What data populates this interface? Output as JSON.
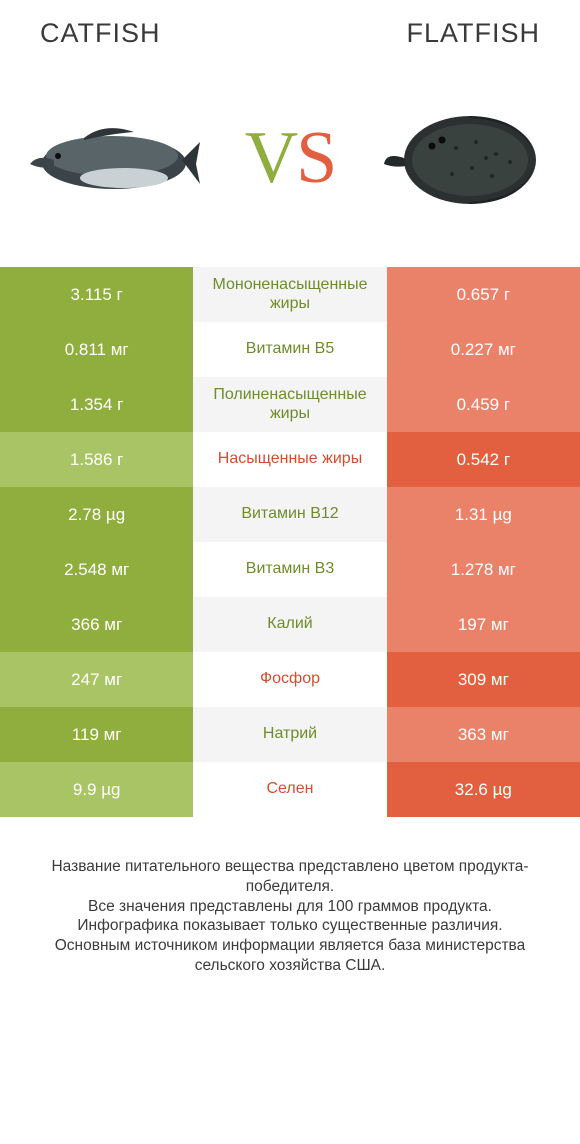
{
  "colors": {
    "left_win": "#8fae3d",
    "left_lose": "#a9c465",
    "right_win": "#e2603f",
    "right_lose": "#ea8269",
    "mid_green": "#6f8c2a",
    "mid_orange": "#d24e2e"
  },
  "header": {
    "left_title": "CATFISH",
    "right_title": "FLATFISH"
  },
  "hero": {
    "vs_v": "V",
    "vs_s": "S"
  },
  "rows": [
    {
      "left": "3.115 г",
      "mid": "Мононенасыщенные жиры",
      "right": "0.657 г",
      "winner": "left"
    },
    {
      "left": "0.811 мг",
      "mid": "Витамин B5",
      "right": "0.227 мг",
      "winner": "left"
    },
    {
      "left": "1.354 г",
      "mid": "Полиненасыщенные жиры",
      "right": "0.459 г",
      "winner": "left"
    },
    {
      "left": "1.586 г",
      "mid": "Насыщенные жиры",
      "right": "0.542 г",
      "winner": "right"
    },
    {
      "left": "2.78 µg",
      "mid": "Витамин B12",
      "right": "1.31 µg",
      "winner": "left"
    },
    {
      "left": "2.548 мг",
      "mid": "Витамин B3",
      "right": "1.278 мг",
      "winner": "left"
    },
    {
      "left": "366 мг",
      "mid": "Калий",
      "right": "197 мг",
      "winner": "left"
    },
    {
      "left": "247 мг",
      "mid": "Фосфор",
      "right": "309 мг",
      "winner": "right"
    },
    {
      "left": "119 мг",
      "mid": "Натрий",
      "right": "363 мг",
      "winner": "left"
    },
    {
      "left": "9.9 µg",
      "mid": "Селен",
      "right": "32.6 µg",
      "winner": "right"
    }
  ],
  "footer": {
    "line1": "Название питательного вещества представлено цветом продукта-победителя.",
    "line2": "Все значения представлены для 100 граммов продукта.",
    "line3": "Инфографика показывает только существенные различия.",
    "line4": "Основным источником информации является база министерства сельского хозяйства США."
  }
}
